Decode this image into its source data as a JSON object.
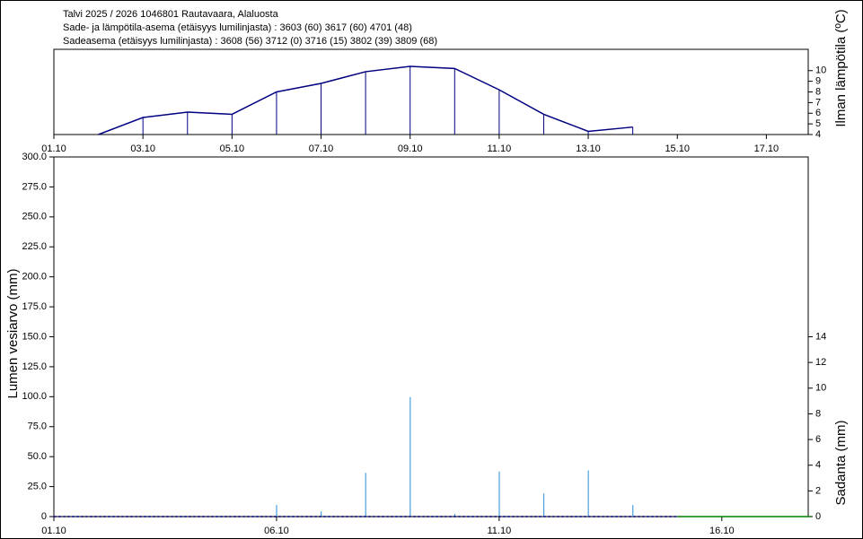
{
  "chart_data": [
    {
      "type": "line",
      "title": "Talvi 2025 / 2026 1046801 Rautavaara, Alaluosta",
      "subtitles": [
        "Sade- ja lämpötila-asema (etäisyys lumilinjasta) :  3603 (60) 3617 (60) 4701 (48)",
        "Sadeasema (etäisyys lumilinjasta) :  3608 (56) 3712 (0) 3716 (15) 3802 (39) 3809 (68)"
      ],
      "y_label": "Ilman lämpötila (ºC)",
      "xlim": [
        1,
        17.94
      ],
      "xticks": [
        {
          "value": 1,
          "label": "01.10"
        },
        {
          "value": 3,
          "label": "03.10"
        },
        {
          "value": 5,
          "label": "05.10"
        },
        {
          "value": 7,
          "label": "07.10"
        },
        {
          "value": 9,
          "label": "09.10"
        },
        {
          "value": 11,
          "label": "11.10"
        },
        {
          "value": 13,
          "label": "13.10"
        },
        {
          "value": 15,
          "label": "15.10"
        },
        {
          "value": 17,
          "label": "17.10"
        }
      ],
      "ylim": [
        4,
        12
      ],
      "yticks": [
        4,
        5,
        6,
        7,
        8,
        9,
        10
      ],
      "stems": true,
      "series": [
        {
          "color": "#000080",
          "x": [
            2,
            3,
            4,
            5,
            6,
            7,
            8,
            9,
            10,
            11,
            12,
            13,
            14
          ],
          "values": [
            4.0,
            5.6,
            6.1,
            5.9,
            8.0,
            8.8,
            9.9,
            10.4,
            10.2,
            8.2,
            5.9,
            4.3,
            4.7
          ]
        }
      ]
    },
    {
      "type": "bar",
      "y_label": "Lumen vesiarvo (mm)",
      "y2_label": "Sadanta (mm)",
      "xlim": [
        1,
        17.94
      ],
      "xticks": [
        {
          "value": 1,
          "label": "01.10"
        },
        {
          "value": 6,
          "label": "06.10"
        },
        {
          "value": 11,
          "label": "11.10"
        },
        {
          "value": 16,
          "label": "16.10"
        }
      ],
      "ylim": [
        0,
        300
      ],
      "yticks": [
        0,
        {
          "value": 25,
          "label": "25.0"
        },
        {
          "value": 50,
          "label": "50.0"
        },
        {
          "value": 75,
          "label": "75.0"
        },
        {
          "value": 100,
          "label": "100.0"
        },
        {
          "value": 125,
          "label": "125.0"
        },
        {
          "value": 150,
          "label": "150.0"
        },
        {
          "value": 175,
          "label": "175.0"
        },
        {
          "value": 200,
          "label": "200.0"
        },
        {
          "value": 225,
          "label": "225.0"
        },
        {
          "value": 250,
          "label": "250.0"
        },
        {
          "value": 275,
          "label": "275.0"
        },
        {
          "value": 300,
          "label": "300.0"
        }
      ],
      "y2lim": [
        0,
        28
      ],
      "y2ticks": [
        0,
        2,
        4,
        6,
        8,
        10,
        12,
        14
      ],
      "series": [
        {
          "type": "bar",
          "axis": "y2",
          "color": "#4a9fdc",
          "x": [
            6,
            7,
            8,
            9,
            10,
            11,
            12,
            13,
            14
          ],
          "values": [
            0.9,
            0.4,
            3.4,
            9.3,
            0.2,
            3.5,
            1.8,
            3.6,
            0.9
          ]
        },
        {
          "type": "line",
          "dashed": true,
          "color": "#000080",
          "x": [
            1,
            15
          ],
          "values": [
            0,
            0
          ]
        },
        {
          "type": "line",
          "color": "#008000",
          "x": [
            15,
            18
          ],
          "values": [
            0,
            0
          ]
        }
      ]
    }
  ]
}
